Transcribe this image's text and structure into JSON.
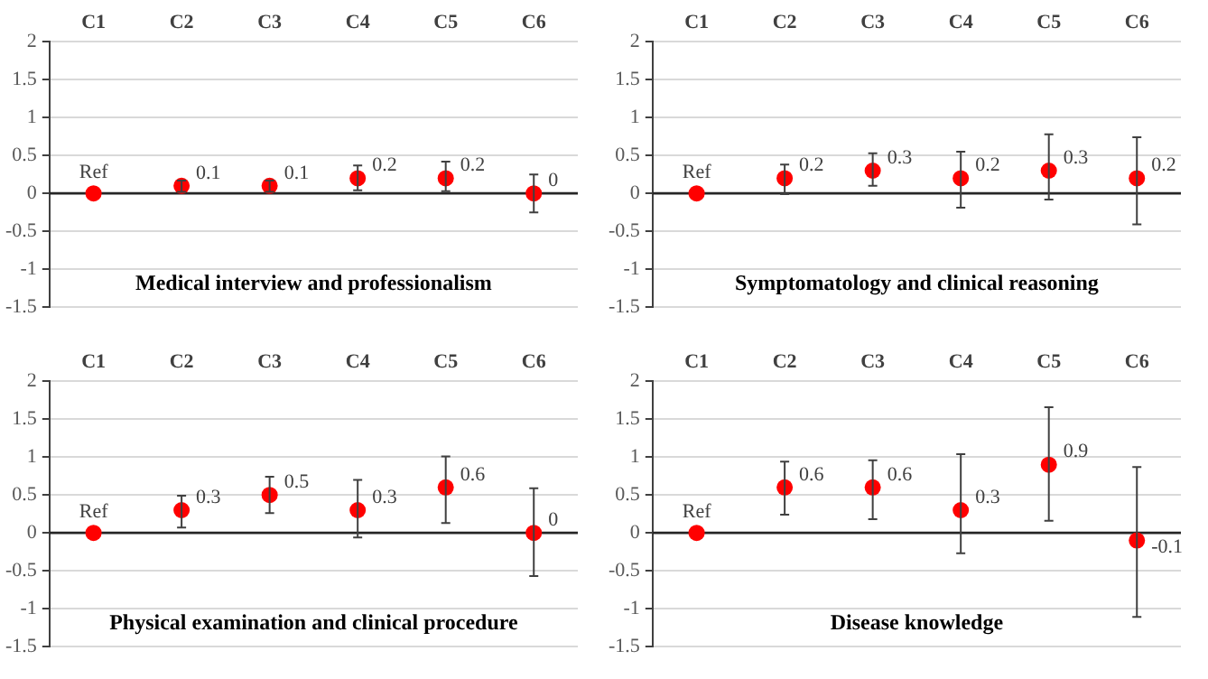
{
  "chart_data": [
    {
      "type": "scatter",
      "title": "Medical interview and professionalism",
      "categories": [
        "C1",
        "C2",
        "C3",
        "C4",
        "C5",
        "C6"
      ],
      "values": [
        0,
        0.1,
        0.1,
        0.2,
        0.2,
        0
      ],
      "color": "#ff0000",
      "errors": [
        null,
        [
          0.02,
          0.17
        ],
        [
          0.02,
          0.17
        ],
        [
          0.04,
          0.37
        ],
        [
          0.03,
          0.42
        ],
        [
          -0.25,
          0.25
        ]
      ],
      "value_labels": [
        "Ref",
        "0.1",
        "0.1",
        "0.2",
        "0.2",
        "0"
      ],
      "ylim": [
        -1.5,
        2
      ],
      "yticks": [
        -1.5,
        -1,
        -0.5,
        0,
        0.5,
        1,
        1.5,
        2
      ],
      "grid": "y",
      "marker": "circle"
    },
    {
      "type": "scatter",
      "title": "Symptomatology and clinical reasoning",
      "categories": [
        "C1",
        "C2",
        "C3",
        "C4",
        "C5",
        "C6"
      ],
      "values": [
        0,
        0.2,
        0.3,
        0.2,
        0.3,
        0.2
      ],
      "color": "#ff0000",
      "errors": [
        null,
        [
          -0.01,
          0.38
        ],
        [
          0.1,
          0.53
        ],
        [
          -0.19,
          0.55
        ],
        [
          -0.08,
          0.78
        ],
        [
          -0.41,
          0.74
        ]
      ],
      "value_labels": [
        "Ref",
        "0.2",
        "0.3",
        "0.2",
        "0.3",
        "0.2"
      ],
      "ylim": [
        -1.5,
        2
      ],
      "yticks": [
        -1.5,
        -1,
        -0.5,
        0,
        0.5,
        1,
        1.5,
        2
      ],
      "grid": "y",
      "marker": "circle"
    },
    {
      "type": "scatter",
      "title": "Physical examination and clinical procedure",
      "categories": [
        "C1",
        "C2",
        "C3",
        "C4",
        "C5",
        "C6"
      ],
      "values": [
        0,
        0.3,
        0.5,
        0.3,
        0.6,
        0
      ],
      "color": "#ff0000",
      "errors": [
        null,
        [
          0.07,
          0.49
        ],
        [
          0.26,
          0.74
        ],
        [
          -0.06,
          0.7
        ],
        [
          0.13,
          1.01
        ],
        [
          -0.57,
          0.59
        ]
      ],
      "value_labels": [
        "Ref",
        "0.3",
        "0.5",
        "0.3",
        "0.6",
        "0"
      ],
      "ylim": [
        -1.5,
        2
      ],
      "yticks": [
        -1.5,
        -1,
        -0.5,
        0,
        0.5,
        1,
        1.5,
        2
      ],
      "grid": "y",
      "marker": "circle"
    },
    {
      "type": "scatter",
      "title": "Disease knowledge",
      "categories": [
        "C1",
        "C2",
        "C3",
        "C4",
        "C5",
        "C6"
      ],
      "values": [
        0,
        0.6,
        0.6,
        0.3,
        0.9,
        -0.1
      ],
      "color": "#ff0000",
      "errors": [
        null,
        [
          0.24,
          0.94
        ],
        [
          0.18,
          0.96
        ],
        [
          -0.27,
          1.04
        ],
        [
          0.16,
          1.66
        ],
        [
          -1.11,
          0.87
        ]
      ],
      "value_labels": [
        "Ref",
        "0.6",
        "0.6",
        "0.3",
        "0.9",
        "-0.1"
      ],
      "ylim": [
        -1.5,
        2
      ],
      "yticks": [
        -1.5,
        -1,
        -0.5,
        0,
        0.5,
        1,
        1.5,
        2
      ],
      "grid": "y",
      "marker": "circle"
    }
  ]
}
